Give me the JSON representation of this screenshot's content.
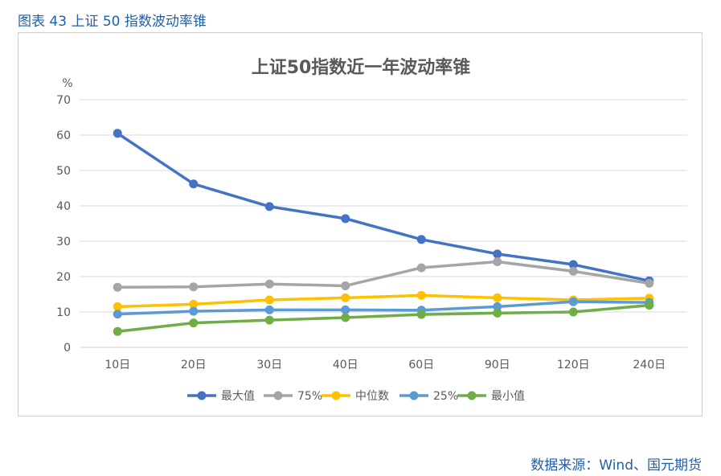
{
  "figure": {
    "caption": "图表 43  上证 50 指数波动率锥",
    "source": "数据来源：Wind、国元期货"
  },
  "chart_data": {
    "type": "line",
    "title": "上证50指数近一年波动率锥",
    "ylabel": "%",
    "xlabel": "",
    "ylim": [
      0,
      70
    ],
    "yticks": [
      "0",
      "10",
      "20",
      "30",
      "40",
      "50",
      "60",
      "70"
    ],
    "categories": [
      "10日",
      "20日",
      "30日",
      "40日",
      "60日",
      "90日",
      "120日",
      "240日"
    ],
    "grid": true,
    "legend": "bottom",
    "series": [
      {
        "name": "最大值",
        "color": "#4472c4",
        "values": [
          60.5,
          46.2,
          39.8,
          36.4,
          30.5,
          26.4,
          23.4,
          18.8
        ]
      },
      {
        "name": "75%",
        "color": "#a5a5a5",
        "values": [
          17.0,
          17.1,
          17.9,
          17.4,
          22.5,
          24.2,
          21.5,
          18.1
        ]
      },
      {
        "name": "中位数",
        "color": "#ffc000",
        "values": [
          11.5,
          12.2,
          13.4,
          14.0,
          14.7,
          14.0,
          13.4,
          13.9
        ]
      },
      {
        "name": "25%",
        "color": "#5b9bd5",
        "values": [
          9.4,
          10.2,
          10.6,
          10.6,
          10.5,
          11.5,
          12.9,
          12.7
        ]
      },
      {
        "name": "最小值",
        "color": "#70ad47",
        "values": [
          4.5,
          6.9,
          7.7,
          8.4,
          9.3,
          9.7,
          10.0,
          11.9
        ]
      }
    ]
  }
}
